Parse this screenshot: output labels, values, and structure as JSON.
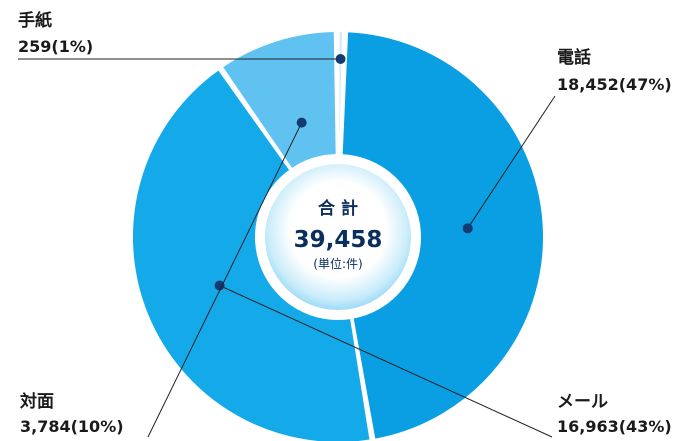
{
  "chart_data": {
    "type": "pie",
    "style": "donut",
    "slices": [
      {
        "label": "電話",
        "value": 18452,
        "percent_label": "18,452(47%)",
        "color": "#0a9ee3"
      },
      {
        "label": "メール",
        "value": 16963,
        "percent_label": "16,963(43%)",
        "color": "#14aaea"
      },
      {
        "label": "対面",
        "value": 3784,
        "percent_label": "3,784(10%)",
        "color": "#5fc2f0"
      },
      {
        "label": "手紙",
        "value": 259,
        "percent_label": "259(1%)",
        "color": "#cfeefb"
      }
    ],
    "center": {
      "label": "合 計",
      "total": "39,458",
      "unit": "(単位:件)"
    }
  },
  "colors": {
    "callout_line": "#222222",
    "marker": "#123a73",
    "text": "#1a1a1a",
    "center_text": "#0b2f5c"
  }
}
